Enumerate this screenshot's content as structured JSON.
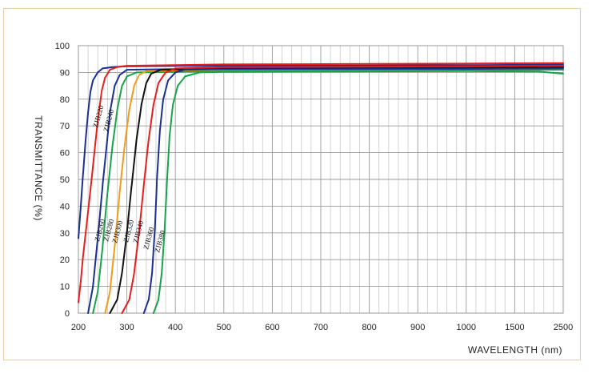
{
  "chart_data": {
    "type": "line",
    "title": "",
    "xlabel": "WAVELENGTH (nm)",
    "ylabel": "TRANSMITTANCE (%)",
    "x_tick_labels": [
      "200",
      "300",
      "400",
      "500",
      "600",
      "700",
      "800",
      "900",
      "1000",
      "1500",
      "2500"
    ],
    "y_tick_labels": [
      "0",
      "10",
      "20",
      "30",
      "40",
      "50",
      "60",
      "70",
      "80",
      "90",
      "100"
    ],
    "ylim": [
      0,
      100
    ],
    "grid": true,
    "x_scale_note": "non-linear axis: 200-1000 nm in 100 nm steps, then 1500 and 2500",
    "series": [
      {
        "name": "ZJB220",
        "color": "#1a2f8f",
        "cutoff": 220,
        "plateau": 92.5,
        "points": [
          [
            200,
            28
          ],
          [
            205,
            40
          ],
          [
            210,
            53
          ],
          [
            215,
            65
          ],
          [
            220,
            75
          ],
          [
            225,
            83
          ],
          [
            230,
            87
          ],
          [
            240,
            90
          ],
          [
            250,
            91.5
          ],
          [
            270,
            92
          ],
          [
            300,
            92.3
          ],
          [
            500,
            92.5
          ],
          [
            1000,
            92.7
          ],
          [
            2500,
            93
          ]
        ]
      },
      {
        "name": "ZJB240",
        "color": "#e51d1d",
        "cutoff": 240,
        "plateau": 92.5,
        "points": [
          [
            200,
            4
          ],
          [
            205,
            12
          ],
          [
            210,
            22
          ],
          [
            220,
            38
          ],
          [
            230,
            55
          ],
          [
            240,
            72
          ],
          [
            248,
            83
          ],
          [
            255,
            88
          ],
          [
            265,
            91
          ],
          [
            280,
            92
          ],
          [
            300,
            92.5
          ],
          [
            500,
            93
          ],
          [
            1000,
            93.3
          ],
          [
            2500,
            93.5
          ]
        ]
      },
      {
        "name": "ZJB260",
        "color": "#1a2f8f",
        "cutoff": 260,
        "plateau": 92,
        "points": [
          [
            220,
            0
          ],
          [
            230,
            10
          ],
          [
            240,
            28
          ],
          [
            250,
            48
          ],
          [
            258,
            62
          ],
          [
            265,
            75
          ],
          [
            275,
            85
          ],
          [
            285,
            89
          ],
          [
            300,
            91
          ],
          [
            500,
            91.5
          ],
          [
            1000,
            92
          ],
          [
            2500,
            92.5
          ]
        ]
      },
      {
        "name": "ZJB280",
        "color": "#17a34a",
        "cutoff": 280,
        "plateau": 91,
        "points": [
          [
            230,
            0
          ],
          [
            240,
            8
          ],
          [
            250,
            25
          ],
          [
            260,
            45
          ],
          [
            270,
            62
          ],
          [
            280,
            76
          ],
          [
            290,
            85
          ],
          [
            300,
            88.5
          ],
          [
            320,
            90
          ],
          [
            500,
            90.5
          ],
          [
            1000,
            90.8
          ],
          [
            2500,
            91
          ]
        ]
      },
      {
        "name": "ZJB300",
        "color": "#f39a1d",
        "cutoff": 300,
        "plateau": 91,
        "points": [
          [
            255,
            0
          ],
          [
            265,
            8
          ],
          [
            275,
            25
          ],
          [
            285,
            45
          ],
          [
            295,
            62
          ],
          [
            305,
            76
          ],
          [
            315,
            85
          ],
          [
            325,
            89
          ],
          [
            340,
            90.5
          ],
          [
            500,
            91
          ],
          [
            1000,
            91.2
          ],
          [
            2500,
            91.5
          ]
        ]
      },
      {
        "name": "ZJB320",
        "color": "#111111",
        "cutoff": 320,
        "plateau": 91.5,
        "points": [
          [
            265,
            0
          ],
          [
            280,
            5
          ],
          [
            290,
            15
          ],
          [
            300,
            30
          ],
          [
            310,
            48
          ],
          [
            320,
            65
          ],
          [
            330,
            78
          ],
          [
            340,
            86
          ],
          [
            350,
            89.5
          ],
          [
            370,
            91
          ],
          [
            500,
            91.3
          ],
          [
            1000,
            91.5
          ],
          [
            2500,
            92
          ]
        ]
      },
      {
        "name": "ZJB340",
        "color": "#e51d1d",
        "cutoff": 340,
        "plateau": 92,
        "points": [
          [
            290,
            0
          ],
          [
            305,
            5
          ],
          [
            315,
            15
          ],
          [
            325,
            30
          ],
          [
            335,
            48
          ],
          [
            345,
            65
          ],
          [
            355,
            78
          ],
          [
            365,
            86
          ],
          [
            380,
            90
          ],
          [
            400,
            91.5
          ],
          [
            500,
            92
          ],
          [
            1000,
            92.3
          ],
          [
            2500,
            92.5
          ]
        ]
      },
      {
        "name": "ZJB360",
        "color": "#1a2f8f",
        "cutoff": 360,
        "plateau": 91,
        "points": [
          [
            335,
            0
          ],
          [
            345,
            5
          ],
          [
            352,
            15
          ],
          [
            358,
            32
          ],
          [
            362,
            50
          ],
          [
            368,
            68
          ],
          [
            375,
            80
          ],
          [
            385,
            87
          ],
          [
            400,
            90
          ],
          [
            420,
            91
          ],
          [
            500,
            91.2
          ],
          [
            1000,
            91.3
          ],
          [
            2500,
            91.5
          ]
        ]
      },
      {
        "name": "ZJB380",
        "color": "#17a34a",
        "cutoff": 380,
        "plateau": 90,
        "points": [
          [
            355,
            0
          ],
          [
            365,
            5
          ],
          [
            372,
            15
          ],
          [
            378,
            32
          ],
          [
            383,
            50
          ],
          [
            388,
            66
          ],
          [
            395,
            78
          ],
          [
            405,
            85
          ],
          [
            420,
            88.5
          ],
          [
            450,
            90
          ],
          [
            500,
            90.2
          ],
          [
            1000,
            90.5
          ],
          [
            2000,
            90.3
          ],
          [
            2500,
            89.5
          ]
        ]
      }
    ]
  }
}
